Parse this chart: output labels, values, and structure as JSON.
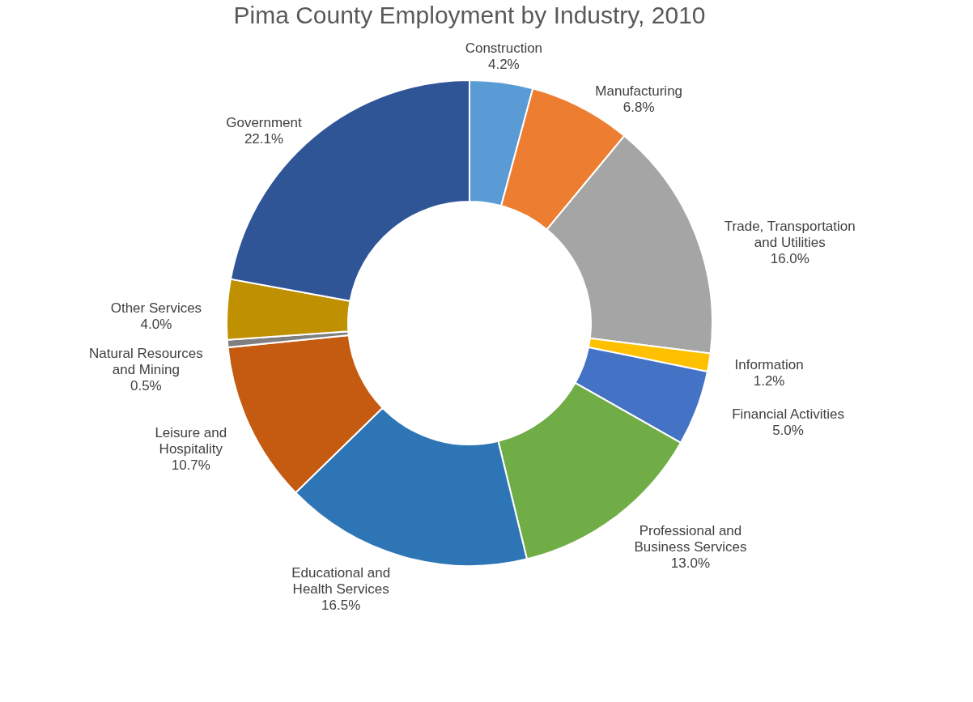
{
  "chart_data": {
    "type": "donut",
    "title": "Pima County Employment by Industry, 2010",
    "categories": [
      "Construction",
      "Manufacturing",
      "Trade, Transportation and Utilities",
      "Information",
      "Financial Activities",
      "Professional and Business Services",
      "Educational and Health Services",
      "Leisure and Hospitality",
      "Natural Resources and Mining",
      "Other Services",
      "Government"
    ],
    "values": [
      4.2,
      6.8,
      16.0,
      1.2,
      5.0,
      13.0,
      16.5,
      10.7,
      0.5,
      4.0,
      22.1
    ],
    "value_labels": [
      "4.2%",
      "6.8%",
      "16.0%",
      "1.2%",
      "5.0%",
      "13.0%",
      "16.5%",
      "10.7%",
      "0.5%",
      "4.0%",
      "22.1%"
    ],
    "colors": [
      "#5b9bd5",
      "#ed7d31",
      "#a5a5a5",
      "#ffc000",
      "#4472c4",
      "#70ad47",
      "#2e75b6",
      "#c55a11",
      "#7f7f7f",
      "#bf9000",
      "#2f5597"
    ]
  }
}
